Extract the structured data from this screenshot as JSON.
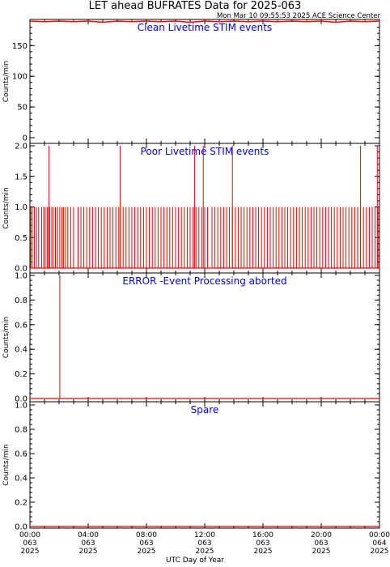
{
  "title": "LET ahead BUFRATES Data for 2025-063",
  "timestamp": "Mon Mar 10 09:55:53 2025 ACE Science Center",
  "colors": {
    "series": "#ff0000",
    "panel_label": "#0000ff",
    "axes": "#000000"
  },
  "chart_data": [
    {
      "type": "line",
      "panel_label": "Clean Livetime STIM events",
      "ylabel": "Counts/min",
      "ylim": [
        0,
        190
      ],
      "yticks": [
        0,
        50,
        100,
        150
      ],
      "ytick_labels": [
        "0",
        "50",
        "100",
        "150"
      ],
      "series": [
        {
          "x": [
            0,
            1,
            2,
            3,
            4,
            5,
            6,
            7,
            8,
            9,
            10,
            11,
            12,
            13,
            14,
            15,
            16,
            17,
            18,
            19,
            20,
            21,
            22,
            23,
            24
          ],
          "values": [
            190,
            189,
            190,
            189,
            190,
            188,
            190,
            189,
            190,
            189,
            190,
            188,
            190,
            189,
            190,
            189,
            190,
            189,
            190,
            189,
            190,
            188,
            190,
            189,
            190
          ]
        }
      ]
    },
    {
      "type": "line",
      "panel_label": "Poor Livetime STIM events",
      "ylabel": "Counts/min",
      "ylim": [
        0,
        2
      ],
      "yticks": [
        0,
        0.5,
        1,
        1.5,
        2
      ],
      "ytick_labels": [
        "0.0",
        "0.5",
        "1.0",
        "1.5",
        "2.0"
      ],
      "series": [
        {
          "spikes_of_1": [
            0.05,
            0.15,
            0.3,
            0.45,
            0.6,
            0.8,
            0.95,
            1.05,
            1.2,
            1.35,
            1.5,
            1.6,
            1.75,
            1.9,
            2.05,
            2.2,
            2.3,
            2.45,
            2.6,
            2.8,
            3.0,
            3.3,
            3.5,
            3.7,
            3.9,
            4.1,
            4.3,
            4.5,
            4.7,
            4.9,
            5.1,
            5.3,
            5.5,
            5.7,
            5.9,
            6.1,
            6.4,
            6.6,
            6.8,
            7.0,
            7.2,
            7.4,
            7.6,
            7.8,
            8.0,
            8.2,
            8.4,
            8.6,
            8.8,
            9.0,
            9.2,
            9.4,
            9.6,
            9.8,
            10.0,
            10.2,
            10.4,
            10.6,
            10.8,
            11.0,
            11.2,
            11.4,
            11.6,
            11.8,
            12.0,
            12.2,
            12.5,
            12.7,
            12.9,
            13.1,
            13.3,
            13.5,
            13.7,
            13.9,
            14.1,
            14.3,
            14.5,
            14.7,
            14.9,
            15.1,
            15.3,
            15.5,
            15.7,
            15.9,
            16.1,
            16.3,
            16.5,
            16.7,
            16.9,
            17.1,
            17.3,
            17.5,
            17.7,
            17.9,
            18.1,
            18.3,
            18.5,
            18.7,
            18.9,
            19.1,
            19.3,
            19.5,
            19.7,
            19.9,
            20.1,
            20.3,
            20.5,
            20.7,
            20.9,
            21.1,
            21.3,
            21.5,
            21.7,
            21.9,
            22.1,
            22.3,
            22.5,
            22.7,
            22.9,
            23.1,
            23.3,
            23.5,
            23.7,
            23.9
          ],
          "spikes_of_2": [
            1.3,
            6.2,
            11.3,
            11.9,
            13.9,
            22.7,
            23.85
          ]
        }
      ]
    },
    {
      "type": "line",
      "panel_label": "ERROR -Event Processing aborted",
      "ylabel": "Counts/min",
      "ylim": [
        0,
        1
      ],
      "yticks": [
        0,
        0.2,
        0.4,
        0.6,
        0.8,
        1.0
      ],
      "ytick_labels": [
        "0.0",
        "0.2",
        "0.4",
        "0.6",
        "0.8",
        "1.0"
      ],
      "series": [
        {
          "spikes_of_1": [
            2.05
          ]
        }
      ]
    },
    {
      "type": "line",
      "panel_label": "Spare",
      "ylabel": "Counts/min",
      "ylim": [
        0,
        1
      ],
      "yticks": [
        0,
        0.2,
        0.4,
        0.6,
        0.8,
        1.0
      ],
      "ytick_labels": [
        "0.0",
        "0.2",
        "0.4",
        "0.6",
        "0.8",
        "1.0"
      ],
      "series": [
        {
          "spikes_of_1": []
        }
      ]
    }
  ],
  "xaxis": {
    "label": "UTC Day of Year",
    "xlim": [
      0,
      24
    ],
    "ticks": [
      {
        "hour": 0,
        "time": "00:00",
        "doy": "063",
        "year": "2025"
      },
      {
        "hour": 4,
        "time": "04:00",
        "doy": "063",
        "year": "2025"
      },
      {
        "hour": 8,
        "time": "08:00",
        "doy": "063",
        "year": "2025"
      },
      {
        "hour": 12,
        "time": "12:00",
        "doy": "063",
        "year": "2025"
      },
      {
        "hour": 16,
        "time": "16:00",
        "doy": "063",
        "year": "2025"
      },
      {
        "hour": 20,
        "time": "20:00",
        "doy": "063",
        "year": "2025"
      },
      {
        "hour": 24,
        "time": "00:00",
        "doy": "064",
        "year": "2025"
      }
    ]
  }
}
